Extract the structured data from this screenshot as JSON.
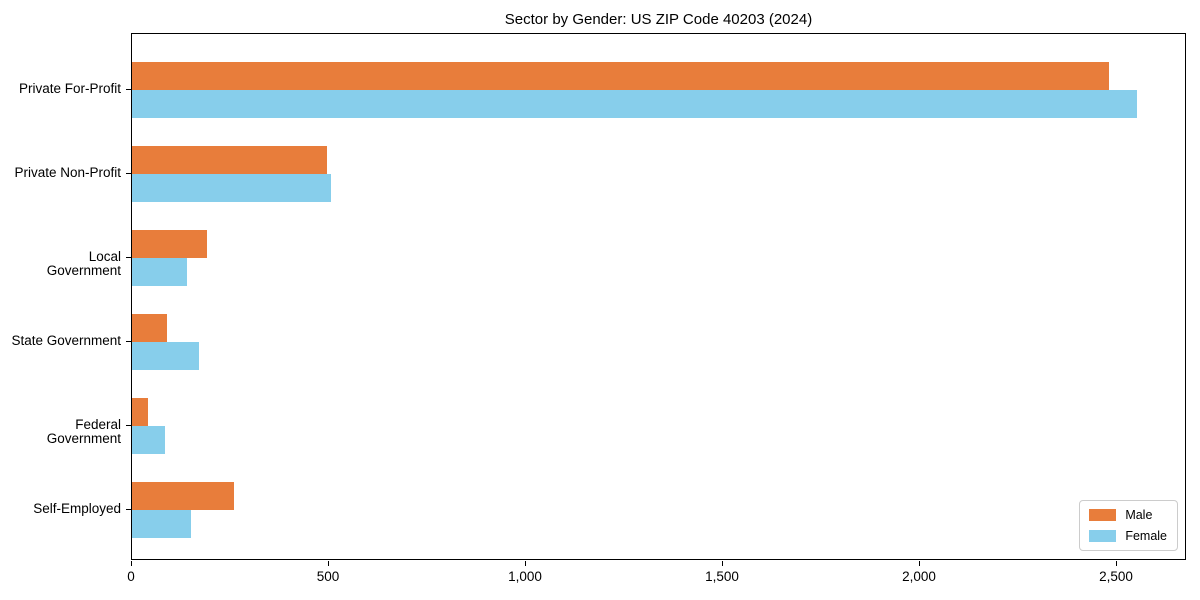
{
  "title": "Sector by Gender: US ZIP Code 40203 (2024)",
  "colors": {
    "male": "#e87d3b",
    "female": "#87ceeb",
    "axis": "#000000",
    "legend_border": "#cccccc",
    "background": "#ffffff"
  },
  "chart_data": {
    "type": "bar",
    "orientation": "horizontal",
    "title": "Sector by Gender: US ZIP Code 40203 (2024)",
    "categories": [
      "Private For-Profit",
      "Private Non-Profit",
      "Local Government",
      "State Government",
      "Federal Government",
      "Self-Employed"
    ],
    "series": [
      {
        "name": "Male",
        "color": "#e87d3b",
        "values": [
          2480,
          495,
          190,
          90,
          40,
          260
        ]
      },
      {
        "name": "Female",
        "color": "#87ceeb",
        "values": [
          2550,
          505,
          140,
          170,
          85,
          150
        ]
      }
    ],
    "xlabel": "",
    "ylabel": "",
    "xlim": [
      0,
      2677.5
    ],
    "x_ticks": [
      0,
      500,
      1000,
      1500,
      2000,
      2500
    ],
    "x_tick_labels": [
      "0",
      "500",
      "1,000",
      "1,500",
      "2,000",
      "2,500"
    ],
    "grid": false,
    "legend_position": "lower right",
    "legend_entries": [
      "Male",
      "Female"
    ]
  }
}
